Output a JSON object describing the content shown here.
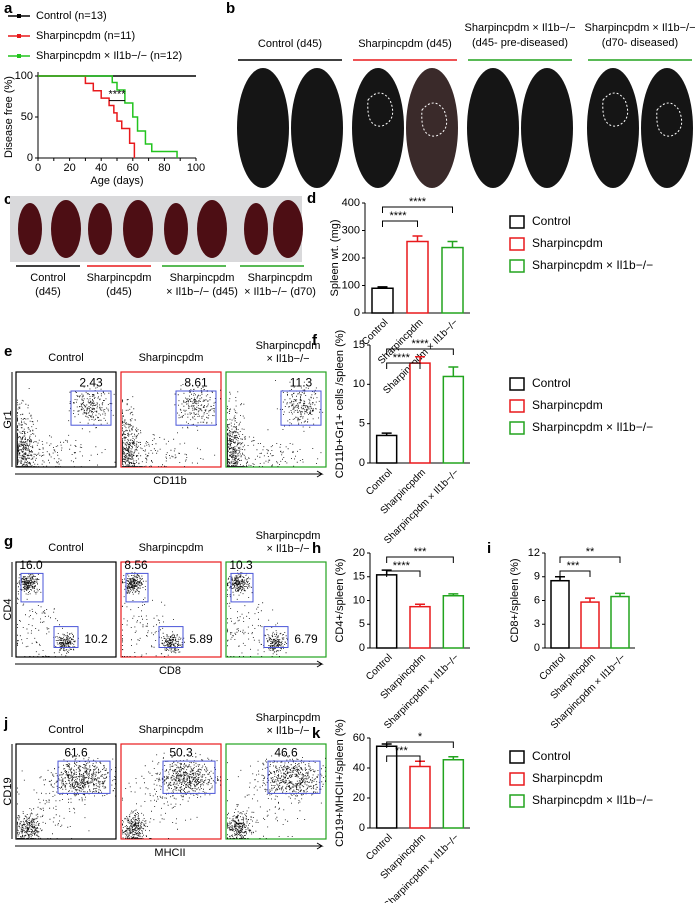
{
  "chart_data": [
    {
      "type": "line",
      "panel": "a",
      "x_label": "Age (days)",
      "y_label": "Disease free (%)",
      "xlim": [
        0,
        100
      ],
      "xticks": [
        0,
        10,
        20,
        30,
        40,
        50,
        60,
        70,
        80,
        90,
        100
      ],
      "ylim": [
        0,
        100
      ],
      "yticks": [
        0,
        50,
        100
      ],
      "annotation": "****",
      "series": [
        {
          "name": "Control (n=13)",
          "color": "#000000",
          "x": [
            0,
            100
          ],
          "values": [
            100,
            100
          ]
        },
        {
          "name": "Sharpincpdm (n=11)",
          "color": "#e8191c",
          "x": [
            0,
            30,
            30,
            35,
            35,
            40,
            40,
            45,
            45,
            48,
            48,
            50,
            50,
            53,
            53,
            58,
            58,
            61,
            61
          ],
          "values": [
            100,
            100,
            91,
            91,
            82,
            82,
            73,
            73,
            64,
            64,
            55,
            55,
            45,
            45,
            36,
            36,
            18,
            18,
            0
          ]
        },
        {
          "name": "Sharpincpdm × Il1b−/− (n=12)",
          "color": "#22c41e",
          "x": [
            0,
            47,
            47,
            50,
            50,
            55,
            55,
            60,
            60,
            63,
            63,
            68,
            68,
            72,
            72,
            88,
            88
          ],
          "values": [
            100,
            100,
            92,
            92,
            83,
            83,
            67,
            67,
            50,
            50,
            33,
            33,
            17,
            17,
            8,
            8,
            0
          ]
        }
      ]
    },
    {
      "type": "bar",
      "panel": "d",
      "y_label": "Spleen wt. (mg)",
      "categories": [
        "Control",
        "Sharpincpdm",
        "Sharpincpdm × Il1b−/−"
      ],
      "colors": [
        "#000000",
        "#e8191c",
        "#22a41e"
      ],
      "values": [
        90,
        260,
        238
      ],
      "errors": [
        5,
        20,
        22
      ],
      "ylim": [
        0,
        400
      ],
      "yticks": [
        0,
        100,
        200,
        300,
        400
      ],
      "annotations": [
        "****",
        "****"
      ],
      "legend": true
    },
    {
      "type": "bar",
      "panel": "f",
      "y_label": "CD11b+Gr1+ cells /spleen (%)",
      "categories": [
        "Control",
        "Sharpincpdm",
        "Sharpincpdm × Il1b−/−"
      ],
      "colors": [
        "#000000",
        "#e8191c",
        "#22a41e"
      ],
      "values": [
        3.5,
        12.7,
        11
      ],
      "errors": [
        0.3,
        0.8,
        1.2
      ],
      "ylim": [
        0,
        15
      ],
      "yticks": [
        0,
        5,
        10,
        15
      ],
      "annotations": [
        "****",
        "****"
      ],
      "legend": true
    },
    {
      "type": "bar",
      "panel": "h",
      "y_label": "CD4+/spleen (%)",
      "categories": [
        "Control",
        "Sharpincpdm",
        "Sharpincpdm × Il1b−/−"
      ],
      "colors": [
        "#000000",
        "#e8191c",
        "#22a41e"
      ],
      "values": [
        15.4,
        8.7,
        11
      ],
      "errors": [
        1,
        0.5,
        0.4
      ],
      "ylim": [
        0,
        20
      ],
      "yticks": [
        0,
        5,
        10,
        15,
        20
      ],
      "annotations": [
        "****",
        "***"
      ],
      "legend": false
    },
    {
      "type": "bar",
      "panel": "i",
      "y_label": "CD8+/spleen (%)",
      "categories": [
        "Control",
        "Sharpincpdm",
        "Sharpincpdm × Il1b−/−"
      ],
      "colors": [
        "#000000",
        "#e8191c",
        "#22a41e"
      ],
      "values": [
        8.5,
        5.8,
        6.5
      ],
      "errors": [
        0.5,
        0.5,
        0.4
      ],
      "ylim": [
        0,
        12
      ],
      "yticks": [
        0,
        3,
        6,
        9,
        12
      ],
      "annotations": [
        "***",
        "**"
      ],
      "legend": false
    },
    {
      "type": "bar",
      "panel": "k",
      "y_label": "CD19+MHCII+/spleen (%)",
      "categories": [
        "Control",
        "Sharpincpdm",
        "Sharpincpdm × Il1b−/−"
      ],
      "colors": [
        "#000000",
        "#e8191c",
        "#22a41e"
      ],
      "values": [
        54.5,
        41,
        45.5
      ],
      "errors": [
        1.5,
        3.5,
        2
      ],
      "ylim": [
        0,
        60
      ],
      "yticks": [
        0,
        20,
        40,
        60
      ],
      "annotations": [
        "***",
        "*"
      ],
      "legend": true
    }
  ],
  "photo_panels": [
    {
      "panel": "b",
      "colors": [
        "#000000",
        "#e8191c",
        "#22a41e",
        "#22a41e"
      ],
      "labels": [
        [
          "Control (d45)"
        ],
        [
          "Sharpincpdm (d45)"
        ],
        [
          "Sharpincpdm × Il1b−/−",
          "(d45- pre-diseased)"
        ],
        [
          "Sharpincpdm × Il1b−/−",
          "(d70- diseased)"
        ]
      ]
    },
    {
      "panel": "c",
      "colors": [
        "#000000",
        "#e8191c",
        "#22a41e",
        "#22a41e"
      ],
      "labels": [
        [
          "Control",
          "(d45)"
        ],
        [
          "Sharpincpdm",
          "(d45)"
        ],
        [
          "Sharpincpdm",
          "× Il1b−/− (d45)"
        ],
        [
          "Sharpincpdm",
          "× Il1b−/− (d70)"
        ]
      ]
    }
  ],
  "flow_panels": [
    {
      "panel": "e",
      "x_label": "CD11b",
      "y_label": "Gr1",
      "plots": [
        {
          "title": [
            "Control"
          ],
          "color": "#000000",
          "gates": [
            "2.43"
          ]
        },
        {
          "title": [
            "Sharpincpdm"
          ],
          "color": "#e8191c",
          "gates": [
            "8.61"
          ]
        },
        {
          "title": [
            "Sharpincpdm",
            "× Il1b−/−"
          ],
          "color": "#22a41e",
          "gates": [
            "11.3"
          ]
        }
      ]
    },
    {
      "panel": "g",
      "x_label": "CD8",
      "y_label": "CD4",
      "plots": [
        {
          "title": [
            "Control"
          ],
          "color": "#000000",
          "gates": [
            "16.0",
            "10.2"
          ]
        },
        {
          "title": [
            "Sharpincpdm"
          ],
          "color": "#e8191c",
          "gates": [
            "8.56",
            "5.89"
          ]
        },
        {
          "title": [
            "Sharpincpdm",
            "× Il1b−/−"
          ],
          "color": "#22a41e",
          "gates": [
            "10.3",
            "6.79"
          ]
        }
      ]
    },
    {
      "panel": "j",
      "x_label": "MHCII",
      "y_label": "CD19",
      "plots": [
        {
          "title": [
            "Control"
          ],
          "color": "#000000",
          "gates": [
            "61.6"
          ]
        },
        {
          "title": [
            "Sharpincpdm"
          ],
          "color": "#e8191c",
          "gates": [
            "50.3"
          ]
        },
        {
          "title": [
            "Sharpincpdm",
            "× Il1b−/−"
          ],
          "color": "#22a41e",
          "gates": [
            "46.6"
          ]
        }
      ]
    }
  ]
}
